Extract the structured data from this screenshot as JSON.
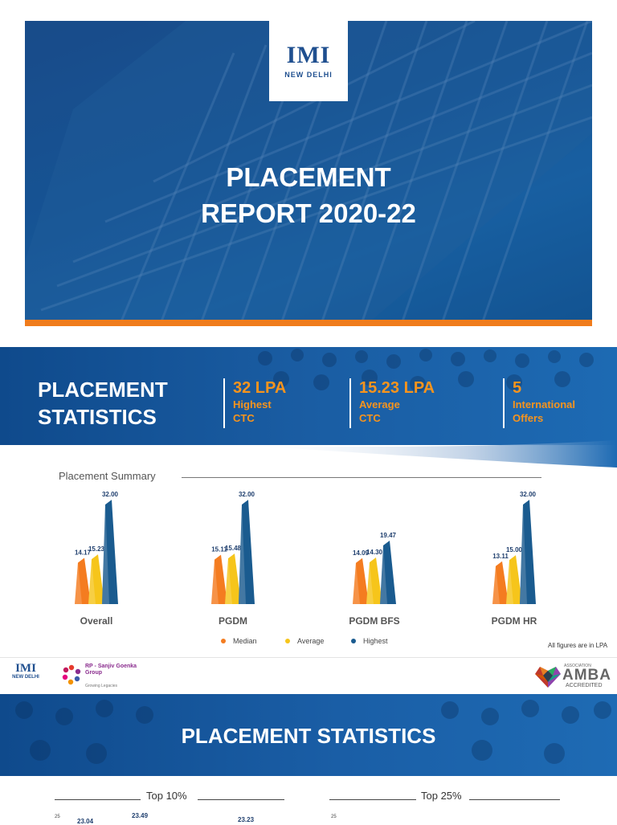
{
  "hero": {
    "logo_mark": "IMI",
    "logo_sub": "NEW DELHI",
    "title_line1": "PLACEMENT",
    "title_line2": "REPORT 2020-22"
  },
  "stats": {
    "title_line1": "PLACEMENT",
    "title_line2": "STATISTICS",
    "kpis": [
      {
        "value": "32 LPA",
        "label_line1": "Highest",
        "label_line2": "CTC"
      },
      {
        "value": "15.23 LPA",
        "label_line1": "Average",
        "label_line2": "CTC"
      },
      {
        "value": "5",
        "label_line1": "International",
        "label_line2": "Offers"
      }
    ],
    "accent": "#f7941d"
  },
  "summary": {
    "title": "Placement Summary",
    "footnote": "All figures are in LPA"
  },
  "chart_data": [
    {
      "type": "bar",
      "title": "Placement Summary",
      "categories": [
        "Overall",
        "PGDM",
        "PGDM BFS",
        "PGDM HR"
      ],
      "series": [
        {
          "name": "Median",
          "color": "#f47c20",
          "values": [
            14.17,
            15.11,
            14.09,
            13.11
          ]
        },
        {
          "name": "Average",
          "color": "#f6c51b",
          "values": [
            15.23,
            15.48,
            14.3,
            15.0
          ]
        },
        {
          "name": "Highest",
          "color": "#1a5b8f",
          "values": [
            32.0,
            32.0,
            19.47,
            32.0
          ]
        }
      ],
      "value_labels": [
        [
          "14.17",
          "15.23",
          "32.00"
        ],
        [
          "15.11",
          "15.48",
          "32.00"
        ],
        [
          "14.09",
          "14.30",
          "19.47"
        ],
        [
          "13.11",
          "15.00",
          "32.00"
        ]
      ],
      "legend_placement": "bottom",
      "grid": false
    },
    {
      "type": "bar",
      "title": "Top 10%",
      "visible_tick": "25",
      "visible_value_labels": [
        "23.04",
        "23.49",
        "23.23"
      ]
    },
    {
      "type": "bar",
      "title": "Top 25%",
      "visible_tick": "25"
    }
  ],
  "logos": {
    "imi_mark": "IMI",
    "imi_sub": "NEW DELHI",
    "rpsg_line1": "RP - Sanjiv Goenka",
    "rpsg_line2": "Group",
    "rpsg_tagline": "Growing Legacies",
    "amba_top": "ASSOCIATION",
    "amba_main": "AMBA",
    "amba_bottom": "ACCREDITED"
  },
  "section2": {
    "title": "PLACEMENT STATISTICS",
    "top10_label": "Top 10%",
    "top25_label": "Top 25%",
    "tick": "25",
    "top10_values": [
      "23.04",
      "23.49",
      "23.23"
    ]
  }
}
